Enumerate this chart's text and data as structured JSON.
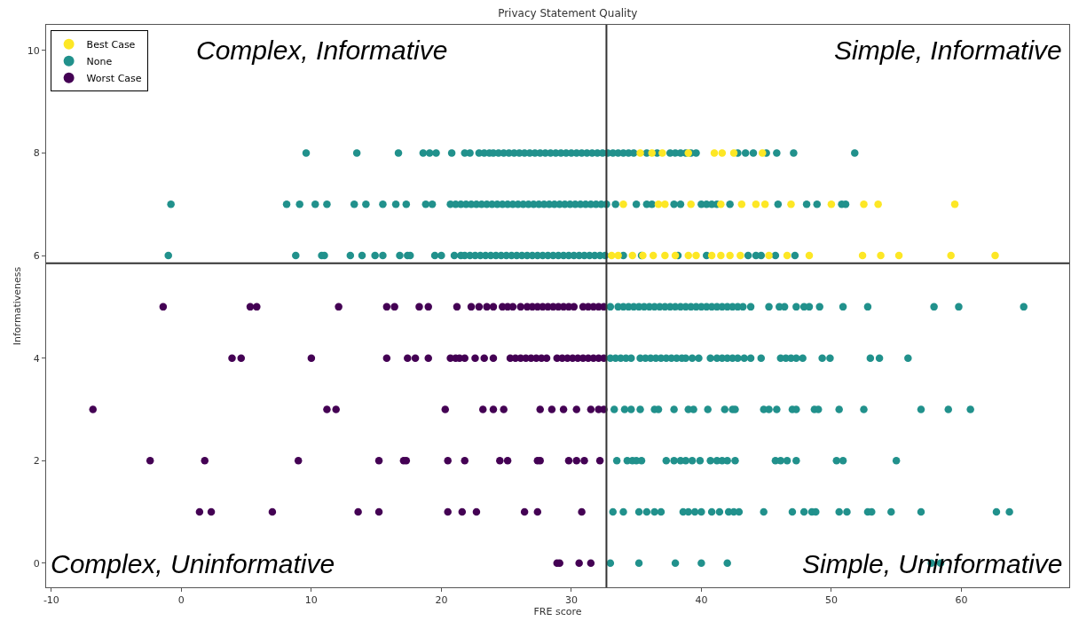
{
  "chart_data": {
    "type": "scatter",
    "title": "Privacy Statement Quality",
    "xlabel": "FRE score",
    "ylabel": "Informativeness",
    "annotations": [
      "Complex, Informative",
      "Simple, Informative",
      "Complex, Uninformative",
      "Simple, Uninformative"
    ],
    "xlim": [
      -10.4,
      68.3
    ],
    "ylim": [
      -0.47,
      10.5
    ],
    "xticks": [
      -10,
      0,
      10,
      20,
      30,
      40,
      50,
      60
    ],
    "yticks": [
      0,
      2,
      4,
      6,
      8,
      10
    ],
    "grid": false,
    "legend": "top left",
    "marker": "circle",
    "ref_lines": [
      {
        "axis": "x",
        "value": 32.7,
        "color": "#333333"
      },
      {
        "axis": "y",
        "value": 5.85,
        "color": "#333333"
      }
    ],
    "series": [
      {
        "name": "Best Case",
        "color": "#fde725",
        "x": [
          35.3,
          36.2,
          37.0,
          39.0,
          41.0,
          41.6,
          42.5,
          44.7,
          34.0,
          36.7,
          37.2,
          39.2,
          41.5,
          43.1,
          44.2,
          44.9,
          46.9,
          50.0,
          52.5,
          53.6,
          59.5,
          33.1,
          33.6,
          34.7,
          35.5,
          36.3,
          37.2,
          38.0,
          39.0,
          39.6,
          40.8,
          41.5,
          42.2,
          43.0,
          45.2,
          46.6,
          48.3,
          52.4,
          53.8,
          55.2,
          59.2,
          62.6
        ],
        "values": [
          8,
          8,
          8,
          8,
          8,
          8,
          8,
          8,
          7,
          7,
          7,
          7,
          7,
          7,
          7,
          7,
          7,
          7,
          7,
          7,
          7,
          6,
          6,
          6,
          6,
          6,
          6,
          6,
          6,
          6,
          6,
          6,
          6,
          6,
          6,
          6,
          6,
          6,
          6,
          6,
          6,
          6
        ]
      },
      {
        "name": "None",
        "color": "#21918c",
        "x": [
          9.6,
          13.5,
          16.7,
          18.6,
          19.1,
          19.6,
          20.8,
          21.8,
          22.2,
          22.9,
          23.3,
          23.7,
          24.0,
          24.4,
          24.8,
          25.2,
          25.6,
          26.0,
          26.4,
          26.8,
          27.2,
          27.6,
          28.0,
          28.4,
          28.8,
          29.2,
          29.6,
          30.0,
          30.4,
          30.8,
          31.2,
          31.6,
          32.0,
          32.4,
          32.8,
          33.2,
          33.6,
          34.0,
          34.4,
          34.8,
          35.8,
          36.6,
          37.6,
          38.0,
          38.4,
          38.8,
          39.2,
          39.6,
          42.8,
          43.4,
          44.0,
          45.0,
          45.8,
          47.1,
          51.8,
          -0.8,
          8.1,
          9.1,
          10.3,
          11.2,
          13.3,
          14.2,
          15.5,
          16.5,
          17.3,
          18.8,
          19.3,
          20.7,
          21.1,
          21.5,
          21.9,
          22.3,
          22.7,
          23.1,
          23.5,
          23.9,
          24.3,
          24.7,
          25.1,
          25.5,
          25.9,
          26.3,
          26.7,
          27.1,
          27.5,
          27.9,
          28.3,
          28.7,
          29.1,
          29.5,
          29.9,
          30.3,
          30.7,
          31.1,
          31.5,
          31.9,
          32.3,
          32.7,
          33.4,
          35.0,
          35.8,
          36.2,
          37.9,
          38.4,
          40.0,
          40.4,
          40.8,
          41.2,
          42.2,
          45.9,
          48.1,
          48.9,
          50.8,
          51.1,
          -1.0,
          8.8,
          10.8,
          11.0,
          13.0,
          13.9,
          14.9,
          15.5,
          16.8,
          17.4,
          17.6,
          19.5,
          20.0,
          21.0,
          21.5,
          21.8,
          22.2,
          22.6,
          23.0,
          23.4,
          23.8,
          24.2,
          24.6,
          25.0,
          25.4,
          25.8,
          26.2,
          26.6,
          27.0,
          27.4,
          27.8,
          28.2,
          28.6,
          29.0,
          29.4,
          29.8,
          30.2,
          30.6,
          31.0,
          31.4,
          31.8,
          32.2,
          32.6,
          34.0,
          35.4,
          38.2,
          40.4,
          43.6,
          44.2,
          44.6,
          45.7,
          47.2,
          33.0,
          33.6,
          34.0,
          34.4,
          34.8,
          35.2,
          35.6,
          36.0,
          36.4,
          36.8,
          37.2,
          37.6,
          38.0,
          38.4,
          38.8,
          39.2,
          39.6,
          40.0,
          40.4,
          40.8,
          41.2,
          41.6,
          42.0,
          42.4,
          42.8,
          43.2,
          43.8,
          45.2,
          46.0,
          46.4,
          47.3,
          47.9,
          48.3,
          49.1,
          50.9,
          52.8,
          57.9,
          59.8,
          64.8,
          33.0,
          33.4,
          33.8,
          34.2,
          34.6,
          35.3,
          35.7,
          36.1,
          36.5,
          36.9,
          37.3,
          37.7,
          38.1,
          38.5,
          38.8,
          39.3,
          39.8,
          40.7,
          41.2,
          41.6,
          42.0,
          42.4,
          42.8,
          43.3,
          43.8,
          44.6,
          46.1,
          46.5,
          46.9,
          47.3,
          47.8,
          49.3,
          49.9,
          53.0,
          53.7,
          55.9,
          33.3,
          34.1,
          34.6,
          35.3,
          36.4,
          36.7,
          37.9,
          39.0,
          39.4,
          40.5,
          41.8,
          42.4,
          42.6,
          44.8,
          45.2,
          45.8,
          47.0,
          47.3,
          48.7,
          49.0,
          50.6,
          52.5,
          56.9,
          59.0,
          60.7,
          33.5,
          34.3,
          34.7,
          35.0,
          35.4,
          37.3,
          37.9,
          38.4,
          38.8,
          39.3,
          39.9,
          40.7,
          41.2,
          41.6,
          42.0,
          42.6,
          45.7,
          46.1,
          46.6,
          47.3,
          50.4,
          50.9,
          55.0,
          33.2,
          34.0,
          35.2,
          35.8,
          36.4,
          36.9,
          38.6,
          39.0,
          39.5,
          40.0,
          40.8,
          41.4,
          42.1,
          42.5,
          42.9,
          44.8,
          47.0,
          47.9,
          48.5,
          48.8,
          50.6,
          51.2,
          52.8,
          53.1,
          54.6,
          56.9,
          62.7,
          63.7,
          33.0,
          35.2,
          38.0,
          40.0,
          42.0,
          57.7,
          58.4
        ],
        "values": [
          8,
          8,
          8,
          8,
          8,
          8,
          8,
          8,
          8,
          8,
          8,
          8,
          8,
          8,
          8,
          8,
          8,
          8,
          8,
          8,
          8,
          8,
          8,
          8,
          8,
          8,
          8,
          8,
          8,
          8,
          8,
          8,
          8,
          8,
          8,
          8,
          8,
          8,
          8,
          8,
          8,
          8,
          8,
          8,
          8,
          8,
          8,
          8,
          8,
          8,
          8,
          8,
          8,
          8,
          8,
          7,
          7,
          7,
          7,
          7,
          7,
          7,
          7,
          7,
          7,
          7,
          7,
          7,
          7,
          7,
          7,
          7,
          7,
          7,
          7,
          7,
          7,
          7,
          7,
          7,
          7,
          7,
          7,
          7,
          7,
          7,
          7,
          7,
          7,
          7,
          7,
          7,
          7,
          7,
          7,
          7,
          7,
          7,
          7,
          7,
          7,
          7,
          7,
          7,
          7,
          7,
          7,
          7,
          7,
          7,
          7,
          7,
          7,
          7,
          6,
          6,
          6,
          6,
          6,
          6,
          6,
          6,
          6,
          6,
          6,
          6,
          6,
          6,
          6,
          6,
          6,
          6,
          6,
          6,
          6,
          6,
          6,
          6,
          6,
          6,
          6,
          6,
          6,
          6,
          6,
          6,
          6,
          6,
          6,
          6,
          6,
          6,
          6,
          6,
          6,
          6,
          6,
          6,
          6,
          6,
          6,
          6,
          6,
          6,
          6,
          6,
          5,
          5,
          5,
          5,
          5,
          5,
          5,
          5,
          5,
          5,
          5,
          5,
          5,
          5,
          5,
          5,
          5,
          5,
          5,
          5,
          5,
          5,
          5,
          5,
          5,
          5,
          5,
          5,
          5,
          5,
          5,
          5,
          5,
          5,
          5,
          5,
          5,
          5,
          5,
          4,
          4,
          4,
          4,
          4,
          4,
          4,
          4,
          4,
          4,
          4,
          4,
          4,
          4,
          4,
          4,
          4,
          4,
          4,
          4,
          4,
          4,
          4,
          4,
          4,
          4,
          4,
          4,
          4,
          4,
          4,
          4,
          4,
          4,
          4,
          4,
          3,
          3,
          3,
          3,
          3,
          3,
          3,
          3,
          3,
          3,
          3,
          3,
          3,
          3,
          3,
          3,
          3,
          3,
          3,
          3,
          3,
          3,
          3,
          3,
          3,
          2,
          2,
          2,
          2,
          2,
          2,
          2,
          2,
          2,
          2,
          2,
          2,
          2,
          2,
          2,
          2,
          2,
          2,
          2,
          2,
          2,
          2,
          2,
          1,
          1,
          1,
          1,
          1,
          1,
          1,
          1,
          1,
          1,
          1,
          1,
          1,
          1,
          1,
          1,
          1,
          1,
          1,
          1,
          1,
          1,
          1,
          1,
          1,
          1,
          1,
          1,
          0,
          0,
          0,
          0,
          0,
          0,
          0
        ]
      },
      {
        "name": "Worst Case",
        "color": "#440154",
        "x": [
          -1.4,
          5.3,
          5.8,
          12.1,
          15.8,
          16.4,
          18.3,
          19.0,
          21.2,
          22.3,
          22.9,
          23.5,
          24.0,
          24.7,
          25.1,
          25.5,
          26.1,
          26.6,
          27.0,
          27.4,
          27.8,
          28.2,
          28.6,
          29.0,
          29.4,
          29.8,
          30.2,
          30.9,
          31.3,
          31.7,
          32.1,
          32.5,
          3.9,
          4.6,
          10.0,
          15.8,
          17.4,
          18.0,
          19.0,
          20.7,
          21.1,
          21.4,
          21.8,
          22.6,
          23.3,
          24.0,
          25.3,
          25.7,
          26.1,
          26.5,
          26.9,
          27.3,
          27.7,
          28.1,
          28.9,
          29.3,
          29.7,
          30.1,
          30.5,
          30.9,
          31.3,
          31.7,
          32.1,
          32.5,
          -6.8,
          11.2,
          11.9,
          20.3,
          23.2,
          24.0,
          24.8,
          27.6,
          28.5,
          29.4,
          30.4,
          31.5,
          32.1,
          32.5,
          -2.4,
          1.8,
          9.0,
          15.2,
          17.1,
          17.3,
          20.5,
          21.8,
          24.5,
          25.1,
          27.4,
          27.6,
          29.8,
          30.4,
          31.0,
          32.2,
          1.4,
          2.3,
          7.0,
          13.6,
          15.2,
          20.5,
          21.6,
          22.7,
          26.4,
          27.4,
          30.8,
          28.9,
          29.1,
          30.6,
          31.5
        ],
        "values": [
          5,
          5,
          5,
          5,
          5,
          5,
          5,
          5,
          5,
          5,
          5,
          5,
          5,
          5,
          5,
          5,
          5,
          5,
          5,
          5,
          5,
          5,
          5,
          5,
          5,
          5,
          5,
          5,
          5,
          5,
          5,
          5,
          4,
          4,
          4,
          4,
          4,
          4,
          4,
          4,
          4,
          4,
          4,
          4,
          4,
          4,
          4,
          4,
          4,
          4,
          4,
          4,
          4,
          4,
          4,
          4,
          4,
          4,
          4,
          4,
          4,
          4,
          4,
          4,
          3,
          3,
          3,
          3,
          3,
          3,
          3,
          3,
          3,
          3,
          3,
          3,
          3,
          3,
          2,
          2,
          2,
          2,
          2,
          2,
          2,
          2,
          2,
          2,
          2,
          2,
          2,
          2,
          2,
          2,
          1,
          1,
          1,
          1,
          1,
          1,
          1,
          1,
          1,
          1,
          1,
          0,
          0,
          0,
          0
        ]
      }
    ]
  }
}
